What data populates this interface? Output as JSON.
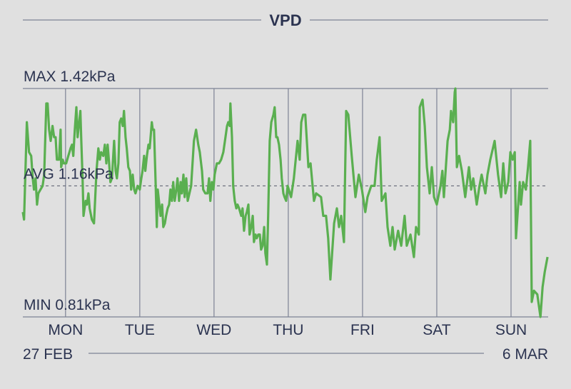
{
  "chart_data": {
    "type": "line",
    "title": "VPD",
    "unit": "kPa",
    "xlabel": "",
    "ylabel": "",
    "x_unit": "hours since Monday 00:00",
    "xlim": [
      -13.8,
      156
    ],
    "ylim": [
      0.81,
      1.42
    ],
    "grid": true,
    "reference_lines": {
      "max": {
        "label": "MAX 1.42kPa",
        "value": 1.42
      },
      "avg": {
        "label": "AVG 1.16kPa",
        "value": 1.16
      },
      "min": {
        "label": "MIN 0.81kPa",
        "value": 0.81
      }
    },
    "day_ticks": [
      {
        "label": "MON",
        "hour": 0
      },
      {
        "label": "TUE",
        "hour": 24
      },
      {
        "label": "WED",
        "hour": 48
      },
      {
        "label": "THU",
        "hour": 72
      },
      {
        "label": "FRI",
        "hour": 96
      },
      {
        "label": "SAT",
        "hour": 120
      },
      {
        "label": "SUN",
        "hour": 144
      }
    ],
    "date_range": {
      "start": "27 FEB",
      "end": "6 MAR"
    },
    "series": [
      {
        "name": "VPD",
        "color": "#5aaf50",
        "points": [
          [
            -13.8,
            1.09
          ],
          [
            -13.4,
            1.07
          ],
          [
            -12.5,
            1.33
          ],
          [
            -11.8,
            1.25
          ],
          [
            -11.1,
            1.24
          ],
          [
            -10.6,
            1.18
          ],
          [
            -10.2,
            1.15
          ],
          [
            -9.7,
            1.18
          ],
          [
            -9.2,
            1.11
          ],
          [
            -8.8,
            1.14
          ],
          [
            -8.1,
            1.15
          ],
          [
            -7.4,
            1.16
          ],
          [
            -6.9,
            1.19
          ],
          [
            -6.2,
            1.38
          ],
          [
            -5.8,
            1.38
          ],
          [
            -5.3,
            1.31
          ],
          [
            -4.8,
            1.28
          ],
          [
            -4.2,
            1.32
          ],
          [
            -3.7,
            1.29
          ],
          [
            -3.2,
            1.29
          ],
          [
            -2.8,
            1.23
          ],
          [
            -2.1,
            1.23
          ],
          [
            -1.6,
            1.31
          ],
          [
            -1.4,
            1.21
          ],
          [
            -0.9,
            1.23
          ],
          [
            -0.5,
            1.22
          ],
          [
            0.2,
            1.22
          ],
          [
            0.9,
            1.24
          ],
          [
            1.6,
            1.26
          ],
          [
            2.1,
            1.27
          ],
          [
            2.5,
            1.24
          ],
          [
            3.0,
            1.31
          ],
          [
            3.5,
            1.37
          ],
          [
            3.9,
            1.29
          ],
          [
            4.8,
            1.36
          ],
          [
            5.1,
            1.28
          ],
          [
            5.5,
            1.18
          ],
          [
            5.8,
            1.08
          ],
          [
            6.5,
            1.12
          ],
          [
            6.9,
            1.11
          ],
          [
            7.4,
            1.14
          ],
          [
            7.8,
            1.1
          ],
          [
            8.5,
            1.07
          ],
          [
            9.2,
            1.06
          ],
          [
            10.0,
            1.2
          ],
          [
            10.6,
            1.26
          ],
          [
            11.1,
            1.23
          ],
          [
            11.5,
            1.25
          ],
          [
            12.2,
            1.24
          ],
          [
            12.7,
            1.27
          ],
          [
            13.2,
            1.22
          ],
          [
            13.6,
            1.27
          ],
          [
            14.1,
            1.22
          ],
          [
            14.5,
            1.17
          ],
          [
            15.0,
            1.18
          ],
          [
            15.7,
            1.28
          ],
          [
            16.2,
            1.2
          ],
          [
            16.6,
            1.18
          ],
          [
            17.1,
            1.22
          ],
          [
            17.5,
            1.33
          ],
          [
            18.0,
            1.34
          ],
          [
            18.5,
            1.32
          ],
          [
            18.9,
            1.36
          ],
          [
            19.4,
            1.29
          ],
          [
            19.8,
            1.26
          ],
          [
            20.3,
            1.21
          ],
          [
            20.8,
            1.2
          ],
          [
            21.2,
            1.15
          ],
          [
            21.7,
            1.19
          ],
          [
            22.2,
            1.15
          ],
          [
            22.6,
            1.14
          ],
          [
            23.3,
            1.16
          ],
          [
            24.0,
            1.15
          ],
          [
            24.5,
            1.18
          ],
          [
            24.9,
            1.2
          ],
          [
            25.4,
            1.24
          ],
          [
            25.8,
            1.2
          ],
          [
            26.3,
            1.24
          ],
          [
            26.8,
            1.27
          ],
          [
            27.2,
            1.26
          ],
          [
            27.9,
            1.33
          ],
          [
            28.2,
            1.31
          ],
          [
            28.6,
            1.31
          ],
          [
            29.1,
            1.17
          ],
          [
            29.5,
            1.05
          ],
          [
            29.8,
            1.15
          ],
          [
            30.2,
            1.12
          ],
          [
            30.7,
            1.08
          ],
          [
            31.2,
            1.11
          ],
          [
            31.6,
            1.05
          ],
          [
            32.1,
            1.06
          ],
          [
            32.5,
            1.08
          ],
          [
            33.0,
            1.1
          ],
          [
            33.5,
            1.11
          ],
          [
            33.9,
            1.15
          ],
          [
            34.4,
            1.12
          ],
          [
            34.8,
            1.17
          ],
          [
            35.3,
            1.12
          ],
          [
            35.8,
            1.15
          ],
          [
            36.2,
            1.18
          ],
          [
            36.7,
            1.12
          ],
          [
            37.2,
            1.17
          ],
          [
            37.6,
            1.14
          ],
          [
            38.1,
            1.19
          ],
          [
            38.5,
            1.13
          ],
          [
            39.0,
            1.18
          ],
          [
            39.5,
            1.12
          ],
          [
            40.6,
            1.16
          ],
          [
            41.5,
            1.28
          ],
          [
            42.2,
            1.31
          ],
          [
            42.9,
            1.27
          ],
          [
            43.4,
            1.25
          ],
          [
            44.1,
            1.2
          ],
          [
            44.5,
            1.15
          ],
          [
            45.2,
            1.14
          ],
          [
            45.9,
            1.14
          ],
          [
            46.4,
            1.18
          ],
          [
            46.8,
            1.12
          ],
          [
            47.3,
            1.17
          ],
          [
            47.8,
            1.15
          ],
          [
            48.2,
            1.19
          ],
          [
            48.9,
            1.22
          ],
          [
            49.6,
            1.22
          ],
          [
            50.3,
            1.23
          ],
          [
            51.0,
            1.25
          ],
          [
            51.7,
            1.29
          ],
          [
            52.2,
            1.32
          ],
          [
            52.6,
            1.33
          ],
          [
            53.1,
            1.32
          ],
          [
            53.3,
            1.38
          ],
          [
            53.8,
            1.29
          ],
          [
            54.2,
            1.16
          ],
          [
            54.7,
            1.12
          ],
          [
            55.2,
            1.1
          ],
          [
            55.6,
            1.11
          ],
          [
            56.1,
            1.1
          ],
          [
            56.8,
            1.08
          ],
          [
            57.2,
            1.1
          ],
          [
            57.7,
            1.04
          ],
          [
            58.2,
            1.08
          ],
          [
            58.6,
            1.09
          ],
          [
            59.1,
            1.11
          ],
          [
            59.5,
            1.03
          ],
          [
            60.0,
            1.05
          ],
          [
            60.5,
            1.08
          ],
          [
            60.9,
            1.01
          ],
          [
            61.4,
            1.03
          ],
          [
            61.8,
            1.02
          ],
          [
            62.3,
            1.03
          ],
          [
            62.8,
            1.03
          ],
          [
            63.2,
            0.99
          ],
          [
            63.7,
            1.0
          ],
          [
            64.2,
            1.05
          ],
          [
            64.6,
            0.98
          ],
          [
            65.1,
            0.95
          ],
          [
            65.5,
            1.08
          ],
          [
            66.0,
            1.28
          ],
          [
            66.5,
            1.33
          ],
          [
            67.2,
            1.35
          ],
          [
            67.6,
            1.37
          ],
          [
            68.1,
            1.29
          ],
          [
            68.5,
            1.29
          ],
          [
            69.0,
            1.27
          ],
          [
            69.5,
            1.23
          ],
          [
            69.9,
            1.18
          ],
          [
            70.4,
            1.14
          ],
          [
            70.8,
            1.13
          ],
          [
            71.3,
            1.12
          ],
          [
            71.8,
            1.16
          ],
          [
            72.9,
            1.13
          ],
          [
            73.8,
            1.18
          ],
          [
            75.0,
            1.28
          ],
          [
            75.7,
            1.23
          ],
          [
            76.2,
            1.33
          ],
          [
            76.8,
            1.35
          ],
          [
            77.5,
            1.35
          ],
          [
            78.5,
            1.21
          ],
          [
            79.2,
            1.22
          ],
          [
            80.3,
            1.12
          ],
          [
            81.0,
            1.14
          ],
          [
            82.6,
            1.13
          ],
          [
            83.3,
            1.08
          ],
          [
            84.2,
            1.08
          ],
          [
            84.9,
            1.02
          ],
          [
            85.6,
            0.91
          ],
          [
            86.8,
            1.06
          ],
          [
            87.7,
            1.1
          ],
          [
            88.4,
            1.05
          ],
          [
            89.1,
            1.08
          ],
          [
            90.0,
            1.01
          ],
          [
            90.7,
            1.36
          ],
          [
            91.4,
            1.35
          ],
          [
            92.5,
            1.24
          ],
          [
            93.7,
            1.13
          ],
          [
            94.8,
            1.19
          ],
          [
            95.8,
            1.15
          ],
          [
            96.9,
            1.09
          ],
          [
            97.6,
            1.13
          ],
          [
            98.8,
            1.16
          ],
          [
            99.9,
            1.16
          ],
          [
            100.6,
            1.23
          ],
          [
            101.5,
            1.29
          ],
          [
            102.2,
            1.12
          ],
          [
            103.4,
            1.14
          ],
          [
            104.1,
            1.05
          ],
          [
            105.0,
            1.0
          ],
          [
            105.7,
            1.05
          ],
          [
            106.4,
            0.99
          ],
          [
            107.5,
            1.04
          ],
          [
            108.5,
            1.0
          ],
          [
            109.6,
            1.08
          ],
          [
            110.3,
            1.0
          ],
          [
            111.5,
            1.03
          ],
          [
            112.6,
            0.97
          ],
          [
            113.3,
            1.05
          ],
          [
            114.2,
            1.03
          ],
          [
            114.5,
            1.37
          ],
          [
            115.4,
            1.39
          ],
          [
            116.1,
            1.32
          ],
          [
            116.8,
            1.21
          ],
          [
            117.7,
            1.14
          ],
          [
            118.4,
            1.21
          ],
          [
            119.1,
            1.13
          ],
          [
            120.0,
            1.11
          ],
          [
            121.2,
            1.16
          ],
          [
            121.8,
            1.2
          ],
          [
            122.3,
            1.13
          ],
          [
            123.5,
            1.28
          ],
          [
            124.2,
            1.31
          ],
          [
            124.6,
            1.36
          ],
          [
            125.3,
            1.33
          ],
          [
            125.8,
            1.41
          ],
          [
            126.0,
            1.42
          ],
          [
            126.5,
            1.21
          ],
          [
            127.2,
            1.24
          ],
          [
            128.1,
            1.2
          ],
          [
            129.2,
            1.13
          ],
          [
            130.4,
            1.21
          ],
          [
            131.1,
            1.15
          ],
          [
            131.8,
            1.18
          ],
          [
            132.9,
            1.11
          ],
          [
            133.8,
            1.16
          ],
          [
            134.5,
            1.19
          ],
          [
            135.7,
            1.14
          ],
          [
            136.4,
            1.19
          ],
          [
            137.3,
            1.23
          ],
          [
            138.7,
            1.28
          ],
          [
            139.8,
            1.19
          ],
          [
            140.8,
            1.13
          ],
          [
            141.5,
            1.22
          ],
          [
            142.2,
            1.14
          ],
          [
            143.1,
            1.17
          ],
          [
            143.8,
            1.25
          ],
          [
            144.5,
            1.23
          ],
          [
            145.2,
            1.25
          ],
          [
            145.6,
            1.02
          ],
          [
            146.8,
            1.17
          ],
          [
            147.2,
            1.11
          ],
          [
            147.9,
            1.17
          ],
          [
            148.8,
            1.15
          ],
          [
            149.5,
            1.21
          ],
          [
            150.2,
            1.28
          ],
          [
            150.7,
            0.85
          ],
          [
            151.4,
            0.88
          ],
          [
            152.5,
            0.87
          ],
          [
            153.5,
            0.81
          ],
          [
            154.2,
            0.89
          ],
          [
            154.9,
            0.93
          ],
          [
            155.8,
            0.97
          ]
        ]
      }
    ]
  },
  "colors": {
    "background": "#e0e0e0",
    "text": "#2b3350",
    "grid": "#7d8295",
    "line": "#5aaf50"
  }
}
